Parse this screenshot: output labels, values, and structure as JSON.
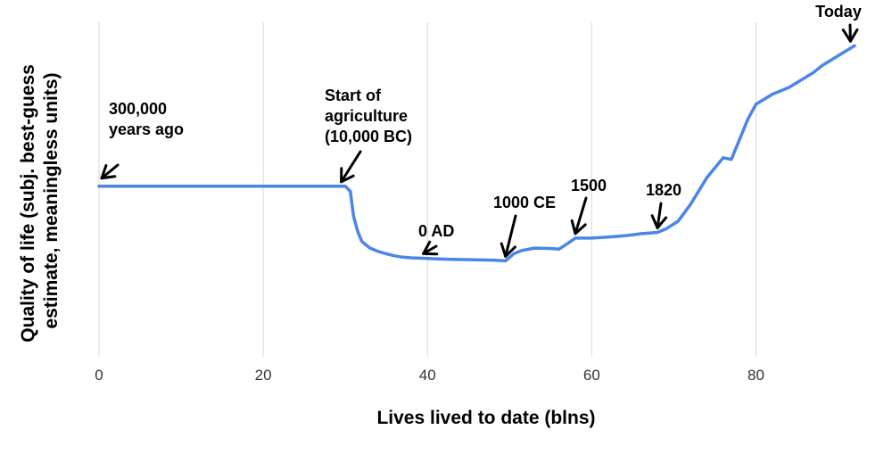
{
  "chart_data": {
    "type": "line",
    "title": "",
    "xlabel": "Lives lived to date (blns)",
    "ylabel_lines": [
      "Quality of life (subj. best-guess",
      "estimate, meaningless units)"
    ],
    "xlim": [
      0,
      92
    ],
    "ylim": [
      0,
      10
    ],
    "xticks": [
      0,
      20,
      40,
      60,
      80
    ],
    "yticks_shown": false,
    "grid": "vertical",
    "series_color": "#4a86e8",
    "series": [
      {
        "x": [
          0,
          10,
          20,
          28,
          30,
          30.6,
          31,
          31.5,
          32,
          33,
          34,
          35,
          36,
          37,
          38,
          40,
          42,
          44,
          46,
          48,
          49.5,
          50.5,
          51.5,
          53,
          55,
          56,
          57,
          58,
          60,
          62,
          64,
          66,
          68,
          69,
          70.5,
          72,
          74,
          76,
          77,
          78,
          79,
          80,
          81,
          82,
          83,
          84,
          85,
          86,
          87,
          88,
          89,
          90,
          91,
          92
        ],
        "y": [
          5.1,
          5.1,
          5.1,
          5.1,
          5.1,
          4.95,
          4.2,
          3.75,
          3.45,
          3.25,
          3.15,
          3.08,
          3.02,
          2.98,
          2.96,
          2.94,
          2.92,
          2.91,
          2.9,
          2.89,
          2.87,
          3.08,
          3.18,
          3.25,
          3.24,
          3.22,
          3.38,
          3.55,
          3.55,
          3.58,
          3.62,
          3.68,
          3.72,
          3.82,
          4.05,
          4.55,
          5.35,
          5.95,
          5.9,
          6.5,
          7.1,
          7.55,
          7.7,
          7.85,
          7.95,
          8.05,
          8.2,
          8.35,
          8.5,
          8.7,
          8.85,
          9.0,
          9.15,
          9.3
        ]
      }
    ],
    "annotations": [
      {
        "lines": [
          "300,000",
          "years ago"
        ],
        "x": 0,
        "y": 5.1
      },
      {
        "lines": [
          "Start of",
          "agriculture",
          "(10,000 BC)"
        ],
        "x": 29.5,
        "y": 5.1
      },
      {
        "lines": [
          "0 AD"
        ],
        "x": 39.5,
        "y": 2.95
      },
      {
        "lines": [
          "1000 CE"
        ],
        "x": 49.5,
        "y": 2.87
      },
      {
        "lines": [
          "1500"
        ],
        "x": 58,
        "y": 3.55
      },
      {
        "lines": [
          "1820"
        ],
        "x": 68,
        "y": 3.72
      },
      {
        "lines": [
          "Today"
        ],
        "x": 91.5,
        "y": 9.3
      }
    ]
  }
}
